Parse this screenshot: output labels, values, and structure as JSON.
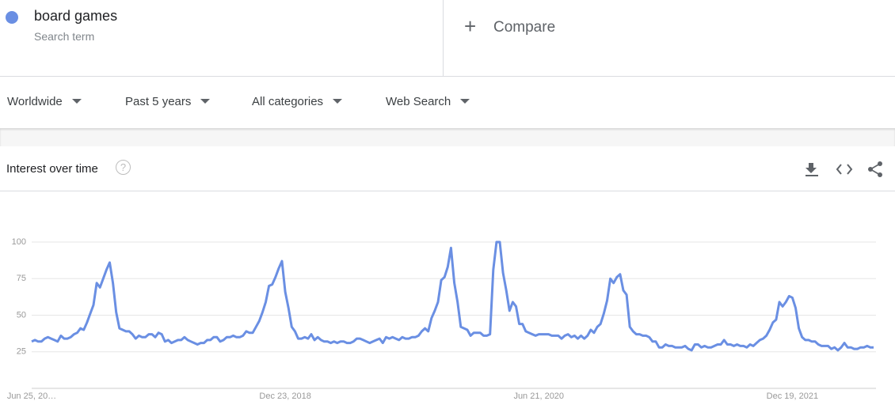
{
  "search": {
    "label": "Search term",
    "compare": "Compare"
  },
  "filters": [
    "Worldwide",
    "Past 5 years",
    "All categories",
    "Web Search"
  ],
  "chart_data": {
    "type": "line",
    "title": "Interest over time",
    "categories": [
      "Jun 25, 20…",
      null,
      null,
      null,
      null,
      null,
      null,
      null,
      null,
      null,
      null,
      null,
      null,
      null,
      null,
      null,
      null,
      null,
      null,
      null,
      null,
      null,
      null,
      null,
      null,
      null,
      null,
      null,
      null,
      null,
      null,
      null,
      null,
      null,
      null,
      null,
      null,
      null,
      null,
      null,
      null,
      null,
      null,
      null,
      null,
      null,
      null,
      null,
      null,
      null,
      null,
      null,
      null,
      null,
      null,
      null,
      null,
      null,
      null,
      null,
      null,
      null,
      null,
      null,
      null,
      null,
      null,
      null,
      null,
      null,
      null,
      null,
      null,
      null,
      null,
      null,
      null,
      null,
      "Dec 23, 2018",
      null,
      null,
      null,
      null,
      null,
      null,
      null,
      null,
      null,
      null,
      null,
      null,
      null,
      null,
      null,
      null,
      null,
      null,
      null,
      null,
      null,
      null,
      null,
      null,
      null,
      null,
      null,
      null,
      null,
      null,
      null,
      null,
      null,
      null,
      null,
      null,
      null,
      null,
      null,
      null,
      null,
      null,
      null,
      null,
      null,
      null,
      null,
      null,
      null,
      null,
      null,
      null,
      null,
      null,
      null,
      null,
      null,
      null,
      null,
      null,
      null,
      null,
      null,
      null,
      null,
      null,
      null,
      null,
      null,
      null,
      null,
      null,
      null,
      null,
      null,
      null,
      null,
      "Jun 21, 2020",
      null,
      null,
      null,
      null,
      null,
      null,
      null,
      null,
      null,
      null,
      null,
      null,
      null,
      null,
      null,
      null,
      null,
      null,
      null,
      null,
      null,
      null,
      null,
      null,
      null,
      null,
      null,
      null,
      null,
      null,
      null,
      null,
      null,
      null,
      null,
      null,
      null,
      null,
      null,
      null,
      null,
      null,
      null,
      null,
      null,
      null,
      null,
      null,
      null,
      null,
      null,
      null,
      null,
      null,
      null,
      null,
      null,
      null,
      null,
      null,
      null,
      null,
      null,
      null,
      null,
      null,
      null,
      null,
      null,
      null,
      null,
      null,
      null,
      null,
      null,
      null,
      null,
      "Dec 19, 2021",
      null,
      null,
      null,
      null,
      null,
      null,
      null,
      null,
      null,
      null,
      null,
      null,
      null,
      null,
      null,
      null,
      null,
      null,
      null,
      null,
      null,
      null,
      null,
      null,
      null
    ],
    "series": [
      {
        "name": "board games",
        "color": "#6a8fe3",
        "values": [
          32,
          33,
          32,
          32,
          34,
          35,
          34,
          33,
          32,
          36,
          34,
          34,
          35,
          37,
          38,
          41,
          40,
          45,
          51,
          57,
          72,
          69,
          75,
          81,
          86,
          72,
          52,
          41,
          40,
          39,
          39,
          37,
          34,
          36,
          35,
          35,
          37,
          37,
          35,
          38,
          37,
          32,
          33,
          31,
          32,
          33,
          33,
          35,
          33,
          32,
          31,
          30,
          31,
          31,
          33,
          33,
          35,
          35,
          32,
          33,
          35,
          35,
          36,
          35,
          35,
          36,
          39,
          38,
          38,
          42,
          46,
          52,
          59,
          70,
          71,
          76,
          82,
          87,
          66,
          55,
          42,
          39,
          34,
          34,
          35,
          34,
          37,
          33,
          35,
          33,
          32,
          32,
          31,
          32,
          31,
          32,
          32,
          31,
          31,
          32,
          34,
          34,
          33,
          32,
          31,
          32,
          33,
          34,
          31,
          35,
          34,
          35,
          34,
          33,
          35,
          34,
          34,
          35,
          35,
          36,
          39,
          41,
          39,
          48,
          53,
          59,
          74,
          76,
          83,
          96,
          72,
          59,
          42,
          41,
          40,
          36,
          38,
          38,
          38,
          36,
          36,
          37,
          81,
          100,
          100,
          79,
          67,
          53,
          59,
          56,
          44,
          44,
          39,
          38,
          37,
          36,
          37,
          37,
          37,
          37,
          36,
          36,
          36,
          34,
          36,
          37,
          35,
          36,
          34,
          36,
          34,
          36,
          40,
          38,
          42,
          44,
          51,
          60,
          75,
          72,
          76,
          78,
          67,
          64,
          42,
          39,
          37,
          37,
          36,
          36,
          35,
          32,
          32,
          28,
          28,
          30,
          29,
          29,
          28,
          28,
          28,
          29,
          27,
          26,
          30,
          30,
          28,
          29,
          28,
          28,
          29,
          30,
          30,
          33,
          30,
          30,
          29,
          30,
          29,
          29,
          28,
          30,
          29,
          31,
          33,
          34,
          36,
          40,
          45,
          47,
          59,
          56,
          59,
          63,
          62,
          55,
          41,
          35,
          33,
          33,
          32,
          32,
          30,
          29,
          29,
          29,
          27,
          28,
          26,
          28,
          31,
          28,
          28,
          27,
          27,
          28,
          28,
          29,
          28,
          28
        ]
      }
    ],
    "ylim": [
      0,
      100
    ],
    "yticks": [
      25,
      50,
      75,
      100
    ],
    "grid": true
  }
}
